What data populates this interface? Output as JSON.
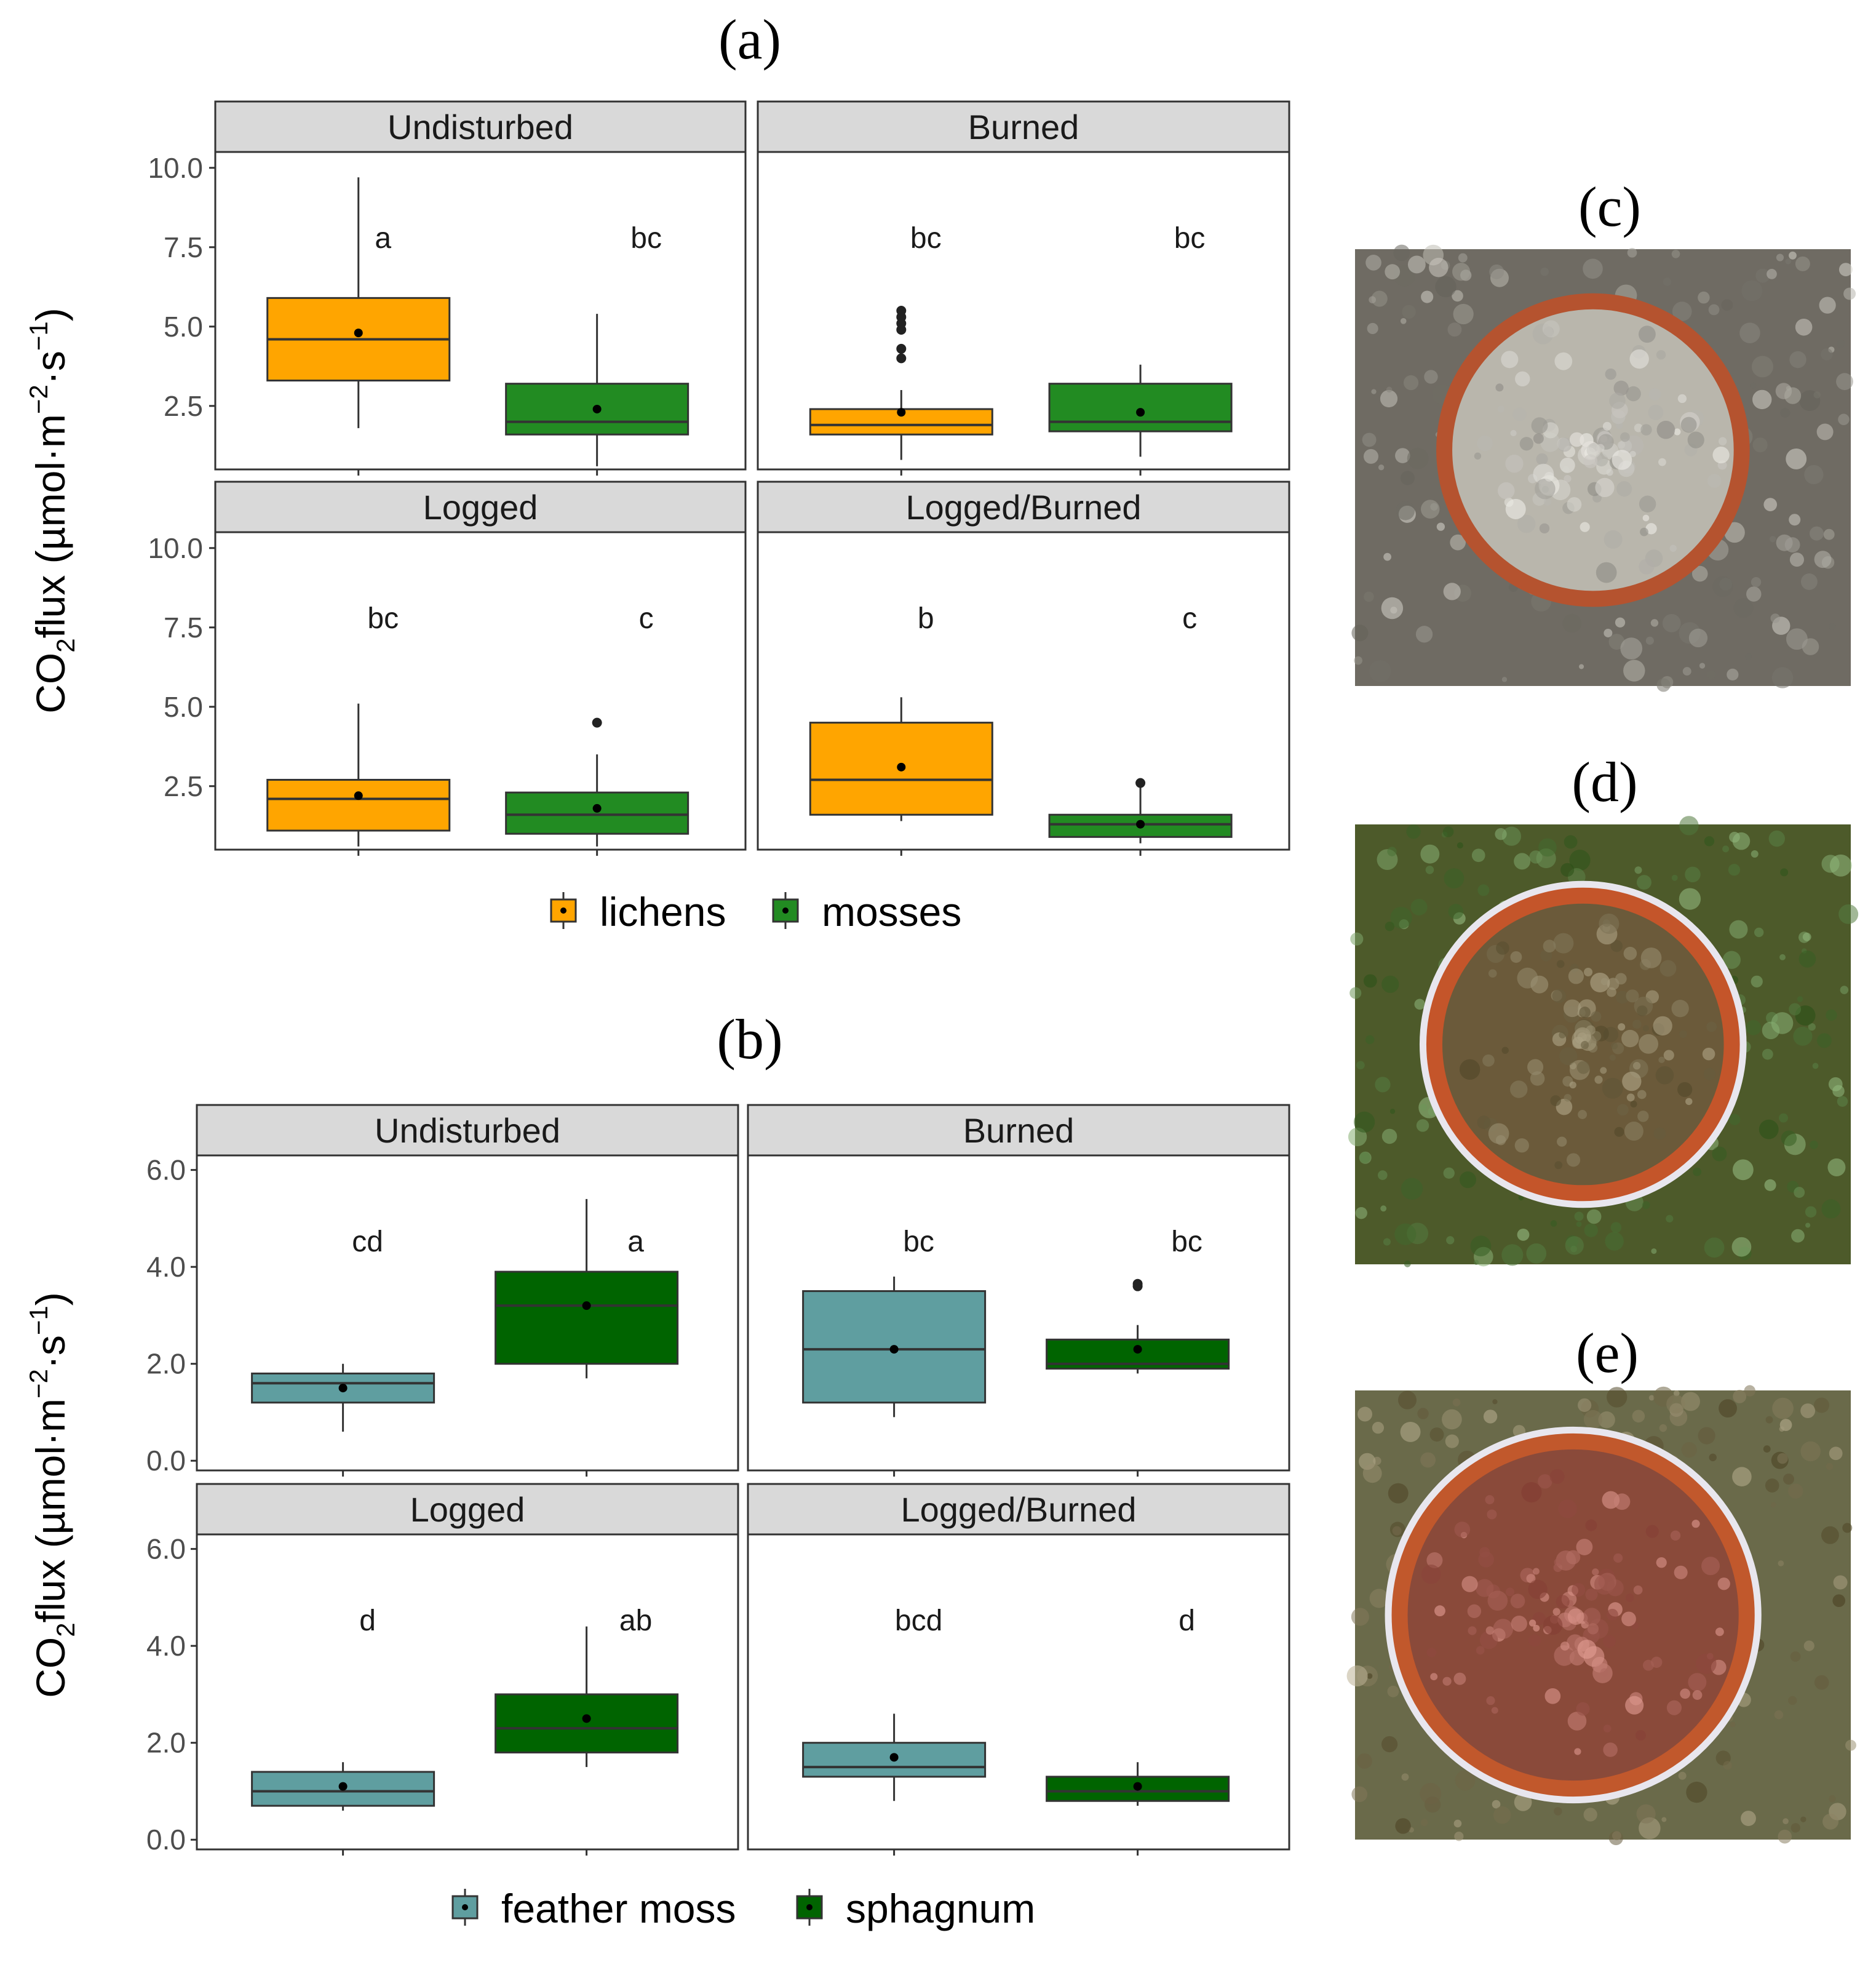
{
  "panel_letters": {
    "a": "(a)",
    "b": "(b)",
    "c": "(c)",
    "d": "(d)",
    "e": "(e)"
  },
  "ylabel": {
    "part1": "CO",
    "sub": "2",
    "part2": "flux (µmol·m",
    "sup1": "−2",
    "part3": "·s",
    "sup2": "−1",
    "part4": ")"
  },
  "colors": {
    "lichens": "#FFA500",
    "mosses": "#228B22",
    "feather_moss": "#5F9EA0",
    "sphagnum": "#006400",
    "strip_bg": "#D9D9D9"
  },
  "photos": [
    {
      "label": "(c)",
      "description_icon": "lichen-collar-photo",
      "ground": "#6f6b63",
      "ring": "#b5532f",
      "inner": "#b9b6ac"
    },
    {
      "label": "(d)",
      "description_icon": "moss-collar-photo",
      "ground": "#4d5a2a",
      "ring": "#c4552a",
      "inner": "#6b5a3a"
    },
    {
      "label": "(e)",
      "description_icon": "sphagnum-collar-photo",
      "ground": "#6a6a4a",
      "ring": "#c1582c",
      "inner": "#8a4a3a"
    }
  ],
  "chart_data": [
    {
      "type": "box",
      "panel": "(a)",
      "ylabel": "CO2flux (µmol·m−2·s−1)",
      "yticks": [
        "2.5",
        "5.0",
        "7.5",
        "10.0"
      ],
      "ylim": [
        0.5,
        10.5
      ],
      "legend": [
        "lichens",
        "mosses"
      ],
      "legend_position": "bottom",
      "facets": [
        {
          "name": "Undisturbed",
          "boxes": [
            {
              "group": "lichens",
              "q1": 3.3,
              "median": 4.6,
              "q3": 5.9,
              "whisker_low": 1.8,
              "whisker_high": 9.7,
              "mean": 4.8,
              "outliers": [],
              "letter": "a"
            },
            {
              "group": "mosses",
              "q1": 1.6,
              "median": 2.0,
              "q3": 3.2,
              "whisker_low": 0.6,
              "whisker_high": 5.4,
              "mean": 2.4,
              "outliers": [],
              "letter": "bc"
            }
          ]
        },
        {
          "name": "Burned",
          "boxes": [
            {
              "group": "lichens",
              "q1": 1.6,
              "median": 1.9,
              "q3": 2.4,
              "whisker_low": 0.8,
              "whisker_high": 3.0,
              "mean": 2.3,
              "outliers": [
                4.0,
                4.3,
                4.9,
                5.1,
                5.3,
                5.5
              ],
              "letter": "bc"
            },
            {
              "group": "mosses",
              "q1": 1.7,
              "median": 2.0,
              "q3": 3.2,
              "whisker_low": 0.9,
              "whisker_high": 3.8,
              "mean": 2.3,
              "outliers": [],
              "letter": "bc"
            }
          ]
        },
        {
          "name": "Logged",
          "boxes": [
            {
              "group": "lichens",
              "q1": 1.1,
              "median": 2.1,
              "q3": 2.7,
              "whisker_low": 0.6,
              "whisker_high": 5.1,
              "mean": 2.2,
              "outliers": [],
              "letter": "bc"
            },
            {
              "group": "mosses",
              "q1": 1.0,
              "median": 1.6,
              "q3": 2.3,
              "whisker_low": 0.6,
              "whisker_high": 3.5,
              "mean": 1.8,
              "outliers": [
                4.5
              ],
              "letter": "c"
            }
          ]
        },
        {
          "name": "Logged/Burned",
          "boxes": [
            {
              "group": "lichens",
              "q1": 1.6,
              "median": 2.7,
              "q3": 4.5,
              "whisker_low": 1.4,
              "whisker_high": 5.3,
              "mean": 3.1,
              "outliers": [],
              "letter": "b"
            },
            {
              "group": "mosses",
              "q1": 0.9,
              "median": 1.3,
              "q3": 1.6,
              "whisker_low": 0.7,
              "whisker_high": 2.6,
              "mean": 1.3,
              "outliers": [
                2.6
              ],
              "letter": "c"
            }
          ]
        }
      ]
    },
    {
      "type": "box",
      "panel": "(b)",
      "ylabel": "CO2flux (µmol·m−2·s−1)",
      "yticks": [
        "0.0",
        "2.0",
        "4.0",
        "6.0"
      ],
      "ylim": [
        -0.2,
        6.3
      ],
      "legend": [
        "feather moss",
        "sphagnum"
      ],
      "legend_position": "bottom",
      "facets": [
        {
          "name": "Undisturbed",
          "boxes": [
            {
              "group": "feather moss",
              "q1": 1.2,
              "median": 1.6,
              "q3": 1.8,
              "whisker_low": 0.6,
              "whisker_high": 2.0,
              "mean": 1.5,
              "outliers": [],
              "letter": "cd"
            },
            {
              "group": "sphagnum",
              "q1": 2.0,
              "median": 3.2,
              "q3": 3.9,
              "whisker_low": 1.7,
              "whisker_high": 5.4,
              "mean": 3.2,
              "outliers": [],
              "letter": "a"
            }
          ]
        },
        {
          "name": "Burned",
          "boxes": [
            {
              "group": "feather moss",
              "q1": 1.2,
              "median": 2.3,
              "q3": 3.5,
              "whisker_low": 0.9,
              "whisker_high": 3.8,
              "mean": 2.3,
              "outliers": [],
              "letter": "bc"
            },
            {
              "group": "sphagnum",
              "q1": 1.9,
              "median": 2.0,
              "q3": 2.5,
              "whisker_low": 1.8,
              "whisker_high": 2.8,
              "mean": 2.3,
              "outliers": [
                3.6,
                3.65
              ],
              "letter": "bc"
            }
          ]
        },
        {
          "name": "Logged",
          "boxes": [
            {
              "group": "feather moss",
              "q1": 0.7,
              "median": 1.0,
              "q3": 1.4,
              "whisker_low": 0.6,
              "whisker_high": 1.6,
              "mean": 1.1,
              "outliers": [],
              "letter": "d"
            },
            {
              "group": "sphagnum",
              "q1": 1.8,
              "median": 2.3,
              "q3": 3.0,
              "whisker_low": 1.5,
              "whisker_high": 4.4,
              "mean": 2.5,
              "outliers": [],
              "letter": "ab"
            }
          ]
        },
        {
          "name": "Logged/Burned",
          "boxes": [
            {
              "group": "feather moss",
              "q1": 1.3,
              "median": 1.5,
              "q3": 2.0,
              "whisker_low": 0.8,
              "whisker_high": 2.6,
              "mean": 1.7,
              "outliers": [],
              "letter": "bcd"
            },
            {
              "group": "sphagnum",
              "q1": 0.8,
              "median": 1.0,
              "q3": 1.3,
              "whisker_low": 0.7,
              "whisker_high": 1.6,
              "mean": 1.1,
              "outliers": [],
              "letter": "d"
            }
          ]
        }
      ]
    }
  ]
}
